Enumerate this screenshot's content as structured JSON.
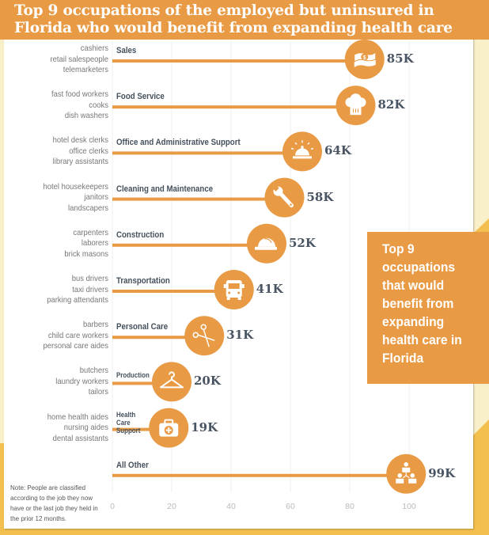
{
  "title_lines": [
    "Top 9 occupations of the employed but uninsured in",
    "Florida who would benefit from expanding health care"
  ],
  "callout": {
    "text": "Top 9 occupations that would benefit from expanding health care in Florida"
  },
  "note": "Note: People are classified according to the job they now have or the last job they held in the prior 12 months.",
  "colors": {
    "accent": "#e99a45",
    "header": "#e99a45",
    "value_text": "#4a5563",
    "background_cream": "#f9efc9",
    "background_yellow": "#f3c04f"
  },
  "chart_data": {
    "type": "bar",
    "title": "Top 9 occupations of the employed but uninsured in Florida who would benefit from expanding health care",
    "xlabel": "",
    "ylabel": "",
    "xlim": [
      0,
      100
    ],
    "x_ticks": [
      "0",
      "20",
      "40",
      "60",
      "80",
      "100"
    ],
    "grid": true,
    "orientation": "horizontal",
    "unit_suffix": "K",
    "categories": [
      "Sales",
      "Food Service",
      "Office and Administrative Support",
      "Cleaning and Maintenance",
      "Construction",
      "Transportation",
      "Personal Care",
      "Production",
      "Health Care Support",
      "All Other"
    ],
    "values": [
      85,
      82,
      64,
      58,
      52,
      41,
      31,
      20,
      19,
      99
    ],
    "value_labels": [
      "85K",
      "82K",
      "64K",
      "58K",
      "52K",
      "41K",
      "31K",
      "20K",
      "19K",
      "99K"
    ],
    "icons": [
      "money-icon",
      "chef-hat-icon",
      "service-bell-icon",
      "wrench-icon",
      "hard-hat-icon",
      "bus-icon",
      "scissors-icon",
      "hanger-icon",
      "first-aid-kit-icon",
      "org-chart-icon"
    ],
    "examples": [
      [
        "cashiers",
        "retail salespeople",
        "telemarketers"
      ],
      [
        "fast food workers",
        "cooks",
        "dish washers"
      ],
      [
        "hotel desk clerks",
        "office clerks",
        "library assistants"
      ],
      [
        "hotel housekeepers",
        "janitors",
        "landscapers"
      ],
      [
        "carpenters",
        "laborers",
        "brick masons"
      ],
      [
        "bus drivers",
        "taxi drivers",
        "parking attendants"
      ],
      [
        "barbers",
        "child care workers",
        "personal care aides"
      ],
      [
        "butchers",
        "laundry workers",
        "tailors"
      ],
      [
        "home health aides",
        "nursing aides",
        "dental assistants"
      ],
      []
    ]
  }
}
